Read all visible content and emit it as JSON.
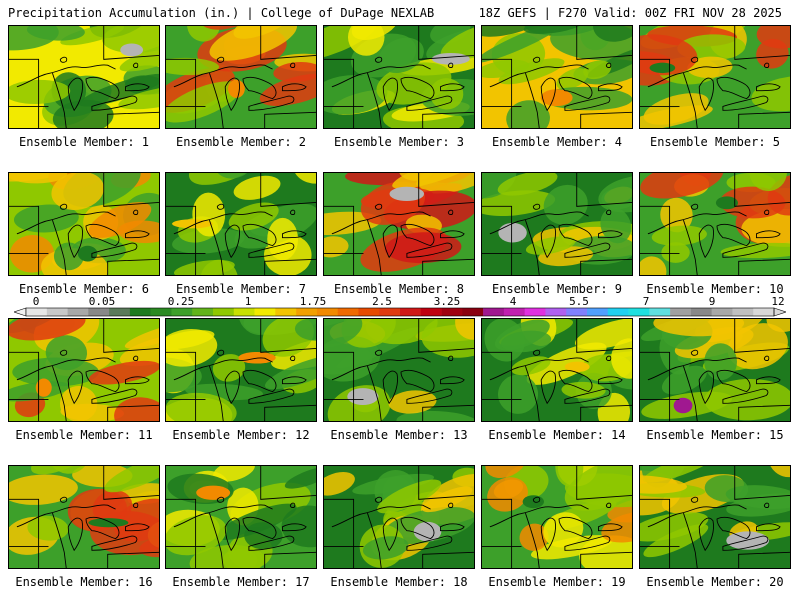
{
  "header": {
    "left_title": "Precipitation Accumulation (in.) | College of DuPage NEXLAB",
    "right_title": "18Z GEFS | F270 Valid: 00Z FRI NOV 28 2025"
  },
  "members": [
    {
      "label": "Ensemble Member: 1",
      "palette": [
        "#f2ea00",
        "#8fc800",
        "#3da02a",
        "#1e7a1e"
      ],
      "accent": "#b4b4b4"
    },
    {
      "label": "Ensemble Member: 2",
      "palette": [
        "#3da02a",
        "#8fc800",
        "#f2c400",
        "#e03a10"
      ],
      "accent": "#f28a00"
    },
    {
      "label": "Ensemble Member: 3",
      "palette": [
        "#1e7a1e",
        "#3da02a",
        "#8fc800",
        "#f2ea00"
      ],
      "accent": "#b4b4b4"
    },
    {
      "label": "Ensemble Member: 4",
      "palette": [
        "#f2c400",
        "#8fc800",
        "#1e7a1e",
        "#3da02a"
      ],
      "accent": "#f28a00"
    },
    {
      "label": "Ensemble Member: 5",
      "palette": [
        "#3da02a",
        "#8fc800",
        "#f2c400",
        "#e03a10"
      ],
      "accent": "#1e7a1e"
    },
    {
      "label": "Ensemble Member: 6",
      "palette": [
        "#8fc800",
        "#f2c400",
        "#3da02a",
        "#f28a00"
      ],
      "accent": "#1e7a1e"
    },
    {
      "label": "Ensemble Member: 7",
      "palette": [
        "#1e7a1e",
        "#3da02a",
        "#8fc800",
        "#f2ea00"
      ],
      "accent": "#f2c400"
    },
    {
      "label": "Ensemble Member: 8",
      "palette": [
        "#3da02a",
        "#f2c400",
        "#e03a10",
        "#d01818"
      ],
      "accent": "#b4b4b4"
    },
    {
      "label": "Ensemble Member: 9",
      "palette": [
        "#1e7a1e",
        "#3da02a",
        "#8fc800",
        "#f2c400"
      ],
      "accent": "#b4b4b4"
    },
    {
      "label": "Ensemble Member: 10",
      "palette": [
        "#3da02a",
        "#8fc800",
        "#f2c400",
        "#e03a10"
      ],
      "accent": "#1e7a1e"
    },
    {
      "label": "Ensemble Member: 11",
      "palette": [
        "#8fc800",
        "#f2c400",
        "#3da02a",
        "#e03a10"
      ],
      "accent": "#f28a00"
    },
    {
      "label": "Ensemble Member: 12",
      "palette": [
        "#1e7a1e",
        "#3da02a",
        "#8fc800",
        "#f2ea00"
      ],
      "accent": "#f28a00"
    },
    {
      "label": "Ensemble Member: 13",
      "palette": [
        "#1e7a1e",
        "#3da02a",
        "#8fc800",
        "#f2c400"
      ],
      "accent": "#b4b4b4"
    },
    {
      "label": "Ensemble Member: 14",
      "palette": [
        "#1e7a1e",
        "#3da02a",
        "#8fc800",
        "#f2ea00"
      ],
      "accent": "#f2c400"
    },
    {
      "label": "Ensemble Member: 15",
      "palette": [
        "#1e7a1e",
        "#3da02a",
        "#8fc800",
        "#f2c400"
      ],
      "accent": "#a01890"
    },
    {
      "label": "Ensemble Member: 16",
      "palette": [
        "#3da02a",
        "#8fc800",
        "#f2c400",
        "#e03a10"
      ],
      "accent": "#1e7a1e"
    },
    {
      "label": "Ensemble Member: 17",
      "palette": [
        "#3da02a",
        "#8fc800",
        "#f2ea00",
        "#1e7a1e"
      ],
      "accent": "#f28a00"
    },
    {
      "label": "Ensemble Member: 18",
      "palette": [
        "#1e7a1e",
        "#3da02a",
        "#8fc800",
        "#f2c400"
      ],
      "accent": "#b4b4b4"
    },
    {
      "label": "Ensemble Member: 19",
      "palette": [
        "#3da02a",
        "#8fc800",
        "#f2ea00",
        "#f28a00"
      ],
      "accent": "#1e7a1e"
    },
    {
      "label": "Ensemble Member: 20",
      "palette": [
        "#1e7a1e",
        "#3da02a",
        "#8fc800",
        "#f2c400"
      ],
      "accent": "#b4b4b4"
    }
  ],
  "colorbar": {
    "tick_labels": [
      "0",
      "0.05",
      "0.25",
      "1",
      "1.75",
      "2.5",
      "3.25",
      "4",
      "5.5",
      "7",
      "9",
      "12"
    ],
    "colors": [
      "#e6e6e6",
      "#c8c8c8",
      "#a8a8a8",
      "#888888",
      "#5a7a5a",
      "#1e7a1e",
      "#2a8a22",
      "#3da02a",
      "#62b41a",
      "#8fc800",
      "#c8e000",
      "#f2ea00",
      "#f2c400",
      "#f2a000",
      "#f28a00",
      "#f06a00",
      "#e84a00",
      "#e03a10",
      "#d01818",
      "#c00010",
      "#a00010",
      "#8a0010",
      "#a01890",
      "#c020b0",
      "#e030e0",
      "#b060f0",
      "#8080ff",
      "#50a0ff",
      "#20d0f0",
      "#20e0e0",
      "#60e0e0",
      "#a0a0a0",
      "#888888",
      "#a8a8a8",
      "#c0c0c0",
      "#d8d8d8"
    ]
  }
}
